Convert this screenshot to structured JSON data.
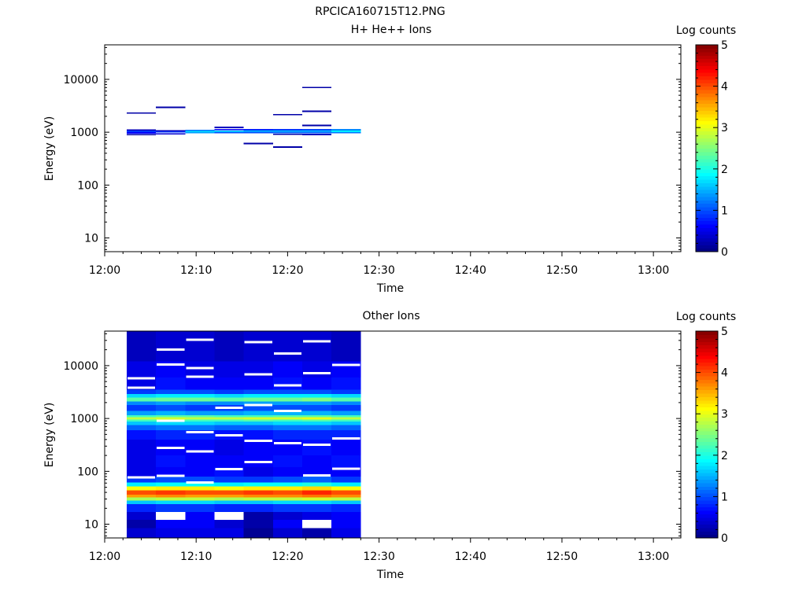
{
  "figure": {
    "title": "RPCICA160715T12.PNG"
  },
  "chart_data": [
    {
      "type": "heatmap",
      "title": "H+ He++ Ions",
      "xlabel": "Time",
      "ylabel": "Energy (eV)",
      "x_ticks": [
        "12:00",
        "12:10",
        "12:20",
        "12:30",
        "12:40",
        "12:50",
        "13:00"
      ],
      "xlim_minutes": [
        0,
        63
      ],
      "y_ticks": [
        10,
        100,
        1000,
        10000
      ],
      "ylim": [
        5.5,
        45000
      ],
      "y_scale": "log",
      "colorbar": {
        "label": "Log counts",
        "ticks": [
          0,
          1,
          2,
          3,
          4,
          5
        ],
        "range": [
          0,
          5
        ],
        "colormap": "jet"
      },
      "data_extent_minutes": [
        2.4,
        28.0
      ],
      "time_columns": [
        {
          "t0": 2.4,
          "t1": 5.6,
          "cells": [
            {
              "e_low": 2230,
              "e_high": 2380,
              "log_counts": 0.2
            },
            {
              "e_low": 1080,
              "e_high": 1140,
              "log_counts": 0.3
            },
            {
              "e_low": 1000,
              "e_high": 1070,
              "log_counts": 0.9
            },
            {
              "e_low": 940,
              "e_high": 1000,
              "log_counts": 0.6
            },
            {
              "e_low": 870,
              "e_high": 920,
              "log_counts": 0.2
            }
          ]
        },
        {
          "t0": 5.6,
          "t1": 8.8,
          "cells": [
            {
              "e_low": 2870,
              "e_high": 3040,
              "log_counts": 0.2
            },
            {
              "e_low": 1040,
              "e_high": 1100,
              "log_counts": 0.3
            },
            {
              "e_low": 980,
              "e_high": 1040,
              "log_counts": 0.9
            },
            {
              "e_low": 900,
              "e_high": 960,
              "log_counts": 0.4
            }
          ]
        },
        {
          "t0": 8.8,
          "t1": 12.0,
          "cells": [
            {
              "e_low": 1060,
              "e_high": 1110,
              "log_counts": 1.2
            },
            {
              "e_low": 1010,
              "e_high": 1060,
              "log_counts": 1.7
            },
            {
              "e_low": 960,
              "e_high": 1010,
              "log_counts": 1.4
            }
          ]
        },
        {
          "t0": 12.0,
          "t1": 15.2,
          "cells": [
            {
              "e_low": 1190,
              "e_high": 1270,
              "log_counts": 0.3
            },
            {
              "e_low": 1100,
              "e_high": 1160,
              "log_counts": 0.6
            },
            {
              "e_low": 1010,
              "e_high": 1070,
              "log_counts": 1.6
            },
            {
              "e_low": 960,
              "e_high": 1010,
              "log_counts": 1.0
            }
          ]
        },
        {
          "t0": 15.2,
          "t1": 18.4,
          "cells": [
            {
              "e_low": 1100,
              "e_high": 1150,
              "log_counts": 0.7
            },
            {
              "e_low": 1010,
              "e_high": 1100,
              "log_counts": 1.4
            },
            {
              "e_low": 960,
              "e_high": 1010,
              "log_counts": 1.0
            },
            {
              "e_low": 590,
              "e_high": 630,
              "log_counts": 0.2
            }
          ]
        },
        {
          "t0": 18.4,
          "t1": 21.6,
          "cells": [
            {
              "e_low": 2090,
              "e_high": 2210,
              "log_counts": 0.2
            },
            {
              "e_low": 1100,
              "e_high": 1150,
              "log_counts": 0.8
            },
            {
              "e_low": 1010,
              "e_high": 1100,
              "log_counts": 1.4
            },
            {
              "e_low": 960,
              "e_high": 1010,
              "log_counts": 1.1
            },
            {
              "e_low": 890,
              "e_high": 940,
              "log_counts": 0.2
            },
            {
              "e_low": 510,
              "e_high": 545,
              "log_counts": 0.2
            }
          ]
        },
        {
          "t0": 21.6,
          "t1": 24.8,
          "cells": [
            {
              "e_low": 6850,
              "e_high": 7250,
              "log_counts": 0.2
            },
            {
              "e_low": 2420,
              "e_high": 2560,
              "log_counts": 0.2
            },
            {
              "e_low": 1300,
              "e_high": 1380,
              "log_counts": 0.2
            },
            {
              "e_low": 1100,
              "e_high": 1160,
              "log_counts": 0.9
            },
            {
              "e_low": 1010,
              "e_high": 1100,
              "log_counts": 1.4
            },
            {
              "e_low": 960,
              "e_high": 1010,
              "log_counts": 1.1
            },
            {
              "e_low": 880,
              "e_high": 930,
              "log_counts": 0.3
            }
          ]
        },
        {
          "t0": 24.8,
          "t1": 28.0,
          "cells": [
            {
              "e_low": 1080,
              "e_high": 1150,
              "log_counts": 1.3
            },
            {
              "e_low": 1010,
              "e_high": 1080,
              "log_counts": 1.8
            },
            {
              "e_low": 950,
              "e_high": 1010,
              "log_counts": 1.2
            }
          ]
        }
      ]
    },
    {
      "type": "heatmap",
      "title": "Other Ions",
      "xlabel": "Time",
      "ylabel": "Energy (eV)",
      "x_ticks": [
        "12:00",
        "12:10",
        "12:20",
        "12:30",
        "12:40",
        "12:50",
        "13:00"
      ],
      "xlim_minutes": [
        0,
        63
      ],
      "y_ticks": [
        10,
        100,
        1000,
        10000
      ],
      "ylim": [
        5.5,
        45000
      ],
      "y_scale": "log",
      "colorbar": {
        "label": "Log counts",
        "ticks": [
          0,
          1,
          2,
          3,
          4,
          5
        ],
        "range": [
          0,
          5
        ],
        "colormap": "jet"
      },
      "time_edges_minutes": [
        2.4,
        5.6,
        8.8,
        12.0,
        15.2,
        18.4,
        21.6,
        24.8,
        28.0
      ],
      "energy_profile": [
        {
          "e_low": 5.5,
          "e_high": 8.5,
          "log_counts": [
            0.4,
            0.5,
            0.5,
            0.5,
            0.1,
            0.4,
            0.2,
            0.5
          ]
        },
        {
          "e_low": 8.5,
          "e_high": 12,
          "log_counts": [
            0.2,
            0.6,
            0.6,
            0.4,
            0.2,
            0.6,
            null,
            0.6
          ]
        },
        {
          "e_low": 12,
          "e_high": 17,
          "log_counts": [
            0.4,
            null,
            0.6,
            null,
            0.2,
            0.4,
            0.5,
            0.6
          ]
        },
        {
          "e_low": 17,
          "e_high": 24,
          "log_counts": [
            0.8,
            0.9,
            0.9,
            0.8,
            0.8,
            0.9,
            0.9,
            0.8
          ]
        },
        {
          "e_low": 24,
          "e_high": 28,
          "log_counts": [
            1.6,
            1.7,
            1.7,
            1.6,
            1.6,
            1.7,
            1.7,
            1.6
          ]
        },
        {
          "e_low": 28,
          "e_high": 32,
          "log_counts": [
            2.7,
            2.8,
            2.8,
            2.7,
            2.8,
            2.8,
            2.9,
            2.8
          ]
        },
        {
          "e_low": 32,
          "e_high": 36,
          "log_counts": [
            3.6,
            3.7,
            3.6,
            3.6,
            3.7,
            3.7,
            3.8,
            3.7
          ]
        },
        {
          "e_low": 36,
          "e_high": 44,
          "log_counts": [
            4.0,
            4.1,
            4.0,
            4.0,
            4.1,
            4.0,
            4.2,
            4.0
          ]
        },
        {
          "e_low": 44,
          "e_high": 52,
          "log_counts": [
            3.1,
            3.2,
            3.2,
            3.1,
            3.2,
            3.2,
            3.3,
            3.1
          ]
        },
        {
          "e_low": 52,
          "e_high": 62,
          "log_counts": [
            1.8,
            1.9,
            1.9,
            1.8,
            1.9,
            1.9,
            2.0,
            1.8
          ]
        },
        {
          "e_low": 62,
          "e_high": 80,
          "log_counts": [
            0.9,
            1.0,
            1.0,
            0.9,
            0.9,
            1.0,
            1.1,
            0.9
          ]
        },
        {
          "e_low": 80,
          "e_high": 120,
          "log_counts": [
            0.5,
            0.6,
            0.6,
            0.7,
            0.5,
            0.6,
            0.6,
            0.6
          ]
        },
        {
          "e_low": 120,
          "e_high": 200,
          "log_counts": [
            0.5,
            0.7,
            0.6,
            0.6,
            0.6,
            0.7,
            0.6,
            0.7
          ]
        },
        {
          "e_low": 200,
          "e_high": 400,
          "log_counts": [
            0.5,
            0.6,
            0.6,
            0.5,
            0.6,
            0.6,
            0.7,
            0.6
          ]
        },
        {
          "e_low": 400,
          "e_high": 600,
          "log_counts": [
            0.7,
            0.8,
            0.8,
            0.7,
            0.7,
            0.8,
            0.8,
            0.8
          ]
        },
        {
          "e_low": 600,
          "e_high": 750,
          "log_counts": [
            1.1,
            1.2,
            1.2,
            1.1,
            1.1,
            1.2,
            1.2,
            1.1
          ]
        },
        {
          "e_low": 750,
          "e_high": 880,
          "log_counts": [
            1.6,
            1.7,
            1.7,
            1.6,
            1.6,
            1.7,
            1.7,
            1.6
          ]
        },
        {
          "e_low": 880,
          "e_high": 960,
          "log_counts": [
            2.2,
            2.3,
            2.2,
            2.2,
            2.3,
            2.2,
            2.3,
            2.2
          ]
        },
        {
          "e_low": 960,
          "e_high": 1050,
          "log_counts": [
            2.8,
            2.9,
            2.8,
            2.8,
            2.9,
            2.9,
            3.0,
            2.8
          ]
        },
        {
          "e_low": 1050,
          "e_high": 1150,
          "log_counts": [
            2.2,
            2.3,
            2.3,
            2.2,
            2.2,
            2.3,
            2.3,
            2.2
          ]
        },
        {
          "e_low": 1150,
          "e_high": 1400,
          "log_counts": [
            1.4,
            1.5,
            1.4,
            1.4,
            1.5,
            1.5,
            1.5,
            1.4
          ]
        },
        {
          "e_low": 1400,
          "e_high": 1800,
          "log_counts": [
            0.9,
            1.0,
            0.9,
            0.9,
            1.0,
            1.0,
            1.0,
            0.9
          ]
        },
        {
          "e_low": 1800,
          "e_high": 2100,
          "log_counts": [
            1.3,
            1.4,
            1.3,
            1.3,
            1.4,
            1.4,
            1.4,
            1.3
          ]
        },
        {
          "e_low": 2100,
          "e_high": 2500,
          "log_counts": [
            2.3,
            2.4,
            2.4,
            2.3,
            2.4,
            2.4,
            2.5,
            2.3
          ]
        },
        {
          "e_low": 2500,
          "e_high": 2900,
          "log_counts": [
            1.7,
            1.8,
            1.8,
            1.7,
            1.8,
            1.8,
            1.8,
            1.7
          ]
        },
        {
          "e_low": 2900,
          "e_high": 3500,
          "log_counts": [
            0.9,
            1.0,
            1.0,
            0.9,
            1.0,
            1.0,
            1.0,
            0.9
          ]
        },
        {
          "e_low": 3500,
          "e_high": 6000,
          "log_counts": [
            0.5,
            0.7,
            0.6,
            0.6,
            0.6,
            0.7,
            0.6,
            0.7
          ]
        },
        {
          "e_low": 6000,
          "e_high": 12000,
          "log_counts": [
            0.5,
            0.6,
            0.5,
            0.5,
            0.5,
            0.6,
            0.5,
            0.6
          ]
        },
        {
          "e_low": 12000,
          "e_high": 45000,
          "log_counts": [
            0.3,
            0.4,
            0.4,
            0.3,
            0.4,
            0.4,
            0.4,
            0.3
          ]
        }
      ],
      "no_count_bins": [
        {
          "col": 0,
          "e": 3800
        },
        {
          "col": 0,
          "e": 5800
        },
        {
          "col": 0,
          "e": 77
        },
        {
          "col": 1,
          "e": 20000
        },
        {
          "col": 1,
          "e": 10500
        },
        {
          "col": 1,
          "e": 900
        },
        {
          "col": 1,
          "e": 280
        },
        {
          "col": 1,
          "e": 82
        },
        {
          "col": 2,
          "e": 31000
        },
        {
          "col": 2,
          "e": 9000
        },
        {
          "col": 2,
          "e": 6200
        },
        {
          "col": 2,
          "e": 550
        },
        {
          "col": 2,
          "e": 240
        },
        {
          "col": 2,
          "e": 62
        },
        {
          "col": 3,
          "e": 1600
        },
        {
          "col": 3,
          "e": 480
        },
        {
          "col": 3,
          "e": 110
        },
        {
          "col": 4,
          "e": 28000
        },
        {
          "col": 4,
          "e": 6800
        },
        {
          "col": 4,
          "e": 1800
        },
        {
          "col": 4,
          "e": 380
        },
        {
          "col": 4,
          "e": 150
        },
        {
          "col": 5,
          "e": 17000
        },
        {
          "col": 5,
          "e": 4200
        },
        {
          "col": 5,
          "e": 1400
        },
        {
          "col": 5,
          "e": 340
        },
        {
          "col": 6,
          "e": 29000
        },
        {
          "col": 6,
          "e": 7200
        },
        {
          "col": 6,
          "e": 320
        },
        {
          "col": 6,
          "e": 84
        },
        {
          "col": 7,
          "e": 10300
        },
        {
          "col": 7,
          "e": 420
        },
        {
          "col": 7,
          "e": 112
        }
      ]
    }
  ]
}
